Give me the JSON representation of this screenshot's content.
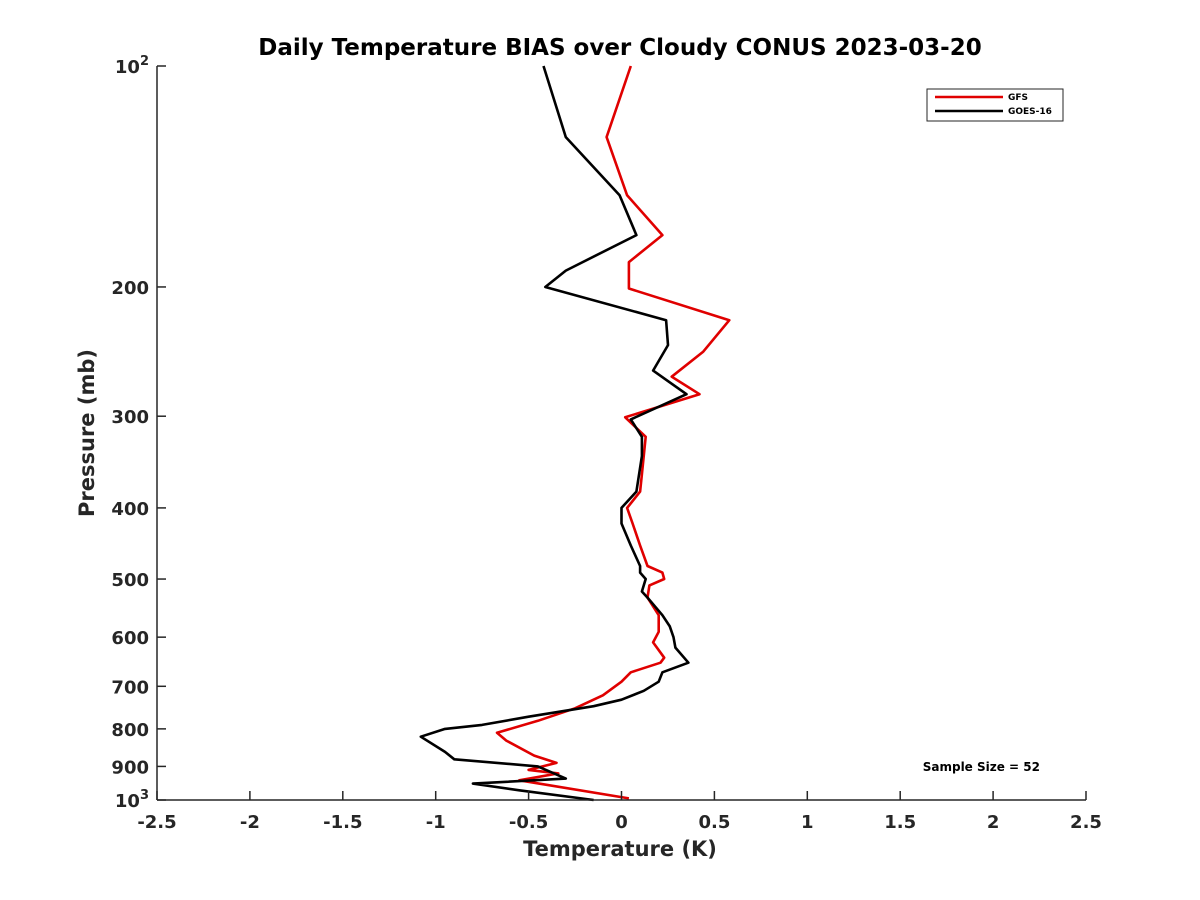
{
  "chart_data": {
    "type": "line",
    "title": "Daily Temperature BIAS over Cloudy CONUS 2023-03-20",
    "xlabel": "Temperature (K)",
    "ylabel": "Pressure (mb)",
    "xlim": [
      -2.5,
      2.5
    ],
    "ylim": [
      100,
      1000
    ],
    "yscale": "log",
    "y_reversed": true,
    "grid": false,
    "legend_position": "top-right",
    "xticks": [
      -2.5,
      -2,
      -1.5,
      -1,
      -0.5,
      0,
      0.5,
      1,
      1.5,
      2,
      2.5
    ],
    "xtick_labels": [
      "-2.5",
      "-2",
      "-1.5",
      "-1",
      "-0.5",
      "0",
      "0.5",
      "1",
      "1.5",
      "2",
      "2.5"
    ],
    "yticks": [
      100,
      200,
      300,
      400,
      500,
      600,
      700,
      800,
      900,
      1000
    ],
    "ytick_labels": [
      {
        "base": "10",
        "exp": "2"
      },
      {
        "base": "200",
        "exp": ""
      },
      {
        "base": "300",
        "exp": ""
      },
      {
        "base": "400",
        "exp": ""
      },
      {
        "base": "500",
        "exp": ""
      },
      {
        "base": "600",
        "exp": ""
      },
      {
        "base": "700",
        "exp": ""
      },
      {
        "base": "800",
        "exp": ""
      },
      {
        "base": "900",
        "exp": ""
      },
      {
        "base": "10",
        "exp": "3"
      }
    ],
    "annotation": "Sample Size = 52",
    "series": [
      {
        "name": "GFS",
        "color": "#e00000",
        "points": [
          [
            0.05,
            100
          ],
          [
            -0.08,
            125
          ],
          [
            0.03,
            150
          ],
          [
            0.22,
            170
          ],
          [
            0.04,
            185
          ],
          [
            0.04,
            201
          ],
          [
            0.58,
            222
          ],
          [
            0.44,
            245
          ],
          [
            0.27,
            265
          ],
          [
            0.42,
            280
          ],
          [
            0.02,
            301
          ],
          [
            0.13,
            320
          ],
          [
            0.11,
            360
          ],
          [
            0.1,
            380
          ],
          [
            0.03,
            400
          ],
          [
            0.06,
            420
          ],
          [
            0.1,
            450
          ],
          [
            0.14,
            480
          ],
          [
            0.22,
            490
          ],
          [
            0.23,
            500
          ],
          [
            0.15,
            510
          ],
          [
            0.14,
            530
          ],
          [
            0.2,
            560
          ],
          [
            0.2,
            590
          ],
          [
            0.17,
            610
          ],
          [
            0.23,
            640
          ],
          [
            0.21,
            650
          ],
          [
            0.05,
            670
          ],
          [
            0.0,
            690
          ],
          [
            -0.1,
            720
          ],
          [
            -0.25,
            750
          ],
          [
            -0.45,
            780
          ],
          [
            -0.67,
            810
          ],
          [
            -0.62,
            830
          ],
          [
            -0.47,
            870
          ],
          [
            -0.35,
            890
          ],
          [
            -0.5,
            910
          ],
          [
            -0.34,
            920
          ],
          [
            -0.55,
            940
          ],
          [
            0.04,
            995
          ]
        ]
      },
      {
        "name": "GOES-16",
        "color": "#000000",
        "points": [
          [
            -0.42,
            100
          ],
          [
            -0.3,
            125
          ],
          [
            -0.01,
            150
          ],
          [
            0.08,
            170
          ],
          [
            -0.3,
            190
          ],
          [
            -0.41,
            200
          ],
          [
            0.24,
            222
          ],
          [
            0.25,
            240
          ],
          [
            0.17,
            260
          ],
          [
            0.35,
            280
          ],
          [
            0.05,
            303
          ],
          [
            0.11,
            320
          ],
          [
            0.11,
            340
          ],
          [
            0.08,
            380
          ],
          [
            0.0,
            400
          ],
          [
            0.0,
            420
          ],
          [
            0.05,
            450
          ],
          [
            0.1,
            480
          ],
          [
            0.1,
            490
          ],
          [
            0.13,
            500
          ],
          [
            0.11,
            520
          ],
          [
            0.14,
            530
          ],
          [
            0.22,
            560
          ],
          [
            0.26,
            580
          ],
          [
            0.28,
            600
          ],
          [
            0.29,
            620
          ],
          [
            0.36,
            650
          ],
          [
            0.22,
            670
          ],
          [
            0.2,
            690
          ],
          [
            0.12,
            710
          ],
          [
            0.0,
            730
          ],
          [
            -0.15,
            745
          ],
          [
            -0.5,
            770
          ],
          [
            -0.75,
            790
          ],
          [
            -0.95,
            800
          ],
          [
            -1.08,
            820
          ],
          [
            -0.95,
            860
          ],
          [
            -0.9,
            880
          ],
          [
            -0.45,
            900
          ],
          [
            -0.3,
            935
          ],
          [
            -0.8,
            950
          ],
          [
            -0.55,
            970
          ],
          [
            -0.15,
            1000
          ]
        ]
      }
    ]
  }
}
